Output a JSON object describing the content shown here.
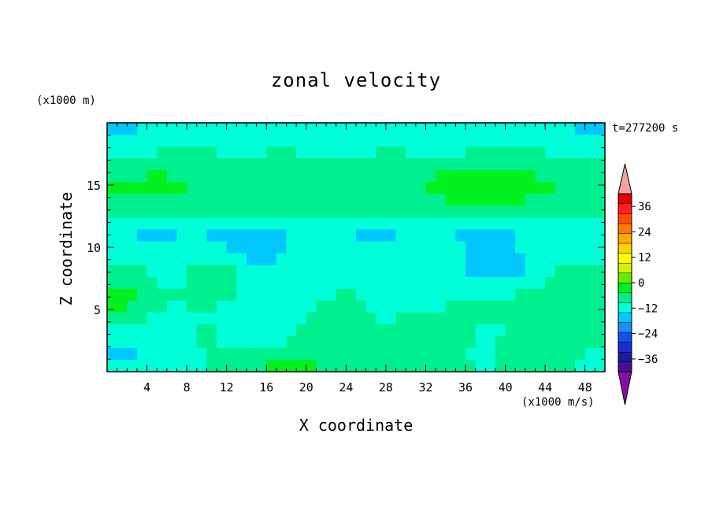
{
  "chart_data": {
    "type": "heatmap",
    "title": "zonal velocity",
    "xlabel": "X coordinate",
    "ylabel": "Z coordinate",
    "x_unit": "(x1000 m/s)",
    "y_unit": "(x1000 m)",
    "time_label": "t=277200 s",
    "xlim": [
      0,
      50
    ],
    "ylim": [
      0,
      20
    ],
    "x_ticks": [
      4,
      8,
      12,
      16,
      20,
      24,
      28,
      32,
      36,
      40,
      44,
      48
    ],
    "y_ticks": [
      5,
      10,
      15
    ],
    "colorbar": {
      "min": -42,
      "max": 42,
      "step": 6,
      "tick_values": [
        36,
        24,
        12,
        0,
        -12,
        -24,
        -36
      ],
      "tick_labels": [
        "36",
        "24",
        "12",
        "0",
        "−12",
        "−24",
        "−36"
      ],
      "colors": [
        "#4b0e8e",
        "#1d1a9e",
        "#1a2ed0",
        "#1450f0",
        "#1a8ef4",
        "#00c8ff",
        "#00ffd8",
        "#00f090",
        "#00f020",
        "#60f000",
        "#d8f000",
        "#ffff00",
        "#ffd200",
        "#ffa800",
        "#ff7800",
        "#ff4c00",
        "#ff2020",
        "#e80000"
      ],
      "over_color": "#f4a0a0",
      "under_color": "#8a0ca8"
    },
    "grid_rows_top_to_bottom": [
      [
        -7,
        -7,
        -7,
        -6,
        -6,
        -5,
        -5,
        -5,
        -4,
        -4,
        -4,
        -4,
        -3,
        -3,
        -4,
        -4,
        -4,
        -5,
        -5,
        -5,
        -5,
        -4,
        -4,
        -3,
        -3,
        -3,
        -4,
        -4,
        -4,
        -5,
        -5,
        -5,
        -5,
        -4,
        -4,
        -4,
        -5,
        -5,
        -6,
        -6,
        -6,
        -6,
        -6,
        -6,
        -6,
        -6,
        -6,
        -7,
        -7,
        -7
      ],
      [
        -5,
        -5,
        -4,
        -4,
        -3,
        -3,
        -2,
        -2,
        -2,
        -3,
        -3,
        -3,
        -2,
        -2,
        -2,
        -3,
        -3,
        -3,
        -3,
        -2,
        -2,
        -2,
        -2,
        -3,
        -3,
        -3,
        -3,
        -2,
        -2,
        -2,
        -3,
        -3,
        -3,
        -3,
        -2,
        -2,
        -2,
        -3,
        -3,
        -3,
        -3,
        -2,
        -2,
        -2,
        -3,
        -3,
        -3,
        -3,
        -3,
        -3
      ],
      [
        -2,
        -2,
        -1,
        -1,
        -1,
        1,
        1,
        2,
        2,
        1,
        1,
        -1,
        -1,
        -2,
        -2,
        -1,
        1,
        1,
        1,
        -1,
        -1,
        -2,
        -2,
        -1,
        -1,
        -1,
        -1,
        1,
        1,
        1,
        -1,
        -1,
        -1,
        -2,
        -2,
        -1,
        1,
        1,
        1,
        2,
        2,
        1,
        1,
        1,
        -1,
        -1,
        -1,
        -1,
        -1,
        -1
      ],
      [
        1,
        1,
        2,
        2,
        3,
        3,
        3,
        2,
        2,
        1,
        1,
        1,
        1,
        1,
        2,
        2,
        2,
        1,
        1,
        1,
        1,
        1,
        2,
        2,
        2,
        1,
        1,
        1,
        1,
        2,
        2,
        2,
        1,
        1,
        1,
        1,
        1,
        2,
        2,
        2,
        2,
        1,
        1,
        1,
        2,
        2,
        1,
        1,
        1,
        1
      ],
      [
        4,
        4,
        5,
        5,
        6,
        6,
        5,
        5,
        4,
        4,
        4,
        3,
        3,
        3,
        4,
        4,
        4,
        3,
        3,
        3,
        3,
        3,
        3,
        4,
        4,
        4,
        3,
        3,
        3,
        3,
        4,
        4,
        5,
        6,
        7,
        8,
        8,
        9,
        9,
        9,
        8,
        7,
        6,
        5,
        5,
        4,
        4,
        4,
        4,
        4
      ],
      [
        6,
        6,
        7,
        7,
        8,
        8,
        7,
        6,
        5,
        5,
        4,
        4,
        4,
        4,
        5,
        5,
        4,
        4,
        3,
        3,
        3,
        3,
        3,
        3,
        4,
        4,
        4,
        4,
        4,
        4,
        5,
        5,
        6,
        7,
        8,
        9,
        10,
        10,
        11,
        11,
        10,
        9,
        8,
        7,
        6,
        5,
        5,
        5,
        5,
        5
      ],
      [
        3,
        3,
        4,
        4,
        5,
        5,
        5,
        4,
        3,
        3,
        3,
        2,
        2,
        2,
        2,
        3,
        3,
        2,
        2,
        2,
        2,
        2,
        2,
        2,
        3,
        3,
        3,
        3,
        3,
        3,
        3,
        4,
        4,
        5,
        6,
        7,
        7,
        7,
        7,
        7,
        7,
        6,
        5,
        4,
        4,
        3,
        3,
        3,
        3,
        3
      ],
      [
        0,
        0,
        0,
        1,
        1,
        1,
        1,
        0,
        0,
        0,
        0,
        0,
        0,
        0,
        0,
        0,
        0,
        0,
        0,
        0,
        0,
        0,
        0,
        0,
        0,
        0,
        0,
        0,
        0,
        0,
        0,
        0,
        0,
        0,
        0,
        1,
        1,
        1,
        1,
        1,
        1,
        1,
        1,
        0,
        0,
        0,
        0,
        0,
        0,
        0
      ],
      [
        -3,
        -3,
        -3,
        -3,
        -4,
        -4,
        -4,
        -4,
        -3,
        -3,
        -3,
        -3,
        -3,
        -4,
        -4,
        -5,
        -5,
        -4,
        -3,
        -3,
        -3,
        -3,
        -3,
        -3,
        -3,
        -3,
        -4,
        -4,
        -4,
        -4,
        -3,
        -3,
        -3,
        -3,
        -3,
        -3,
        -3,
        -3,
        -3,
        -3,
        -3,
        -3,
        -3,
        -3,
        -3,
        -3,
        -3,
        -3,
        -3,
        -3
      ],
      [
        -6,
        -6,
        -6,
        -7,
        -7,
        -7,
        -7,
        -6,
        -6,
        -6,
        -7,
        -7,
        -7,
        -7,
        -8,
        -8,
        -8,
        -7,
        -6,
        -6,
        -6,
        -6,
        -6,
        -6,
        -6,
        -7,
        -7,
        -7,
        -7,
        -6,
        -5,
        -5,
        -5,
        -6,
        -6,
        -7,
        -7,
        -7,
        -7,
        -7,
        -7,
        -6,
        -6,
        -6,
        -6,
        -6,
        -6,
        -6,
        -6,
        -6
      ],
      [
        -5,
        -5,
        -5,
        -6,
        -6,
        -6,
        -5,
        -5,
        -5,
        -5,
        -6,
        -6,
        -7,
        -7,
        -8,
        -8,
        -8,
        -7,
        -6,
        -5,
        -5,
        -5,
        -5,
        -5,
        -5,
        -6,
        -6,
        -5,
        -5,
        -4,
        -4,
        -3,
        -4,
        -4,
        -5,
        -6,
        -7,
        -8,
        -8,
        -8,
        -7,
        -6,
        -5,
        -5,
        -5,
        -5,
        -5,
        -5,
        -5,
        -5
      ],
      [
        -4,
        -4,
        -4,
        -5,
        -5,
        -5,
        -4,
        -4,
        -3,
        -3,
        -4,
        -5,
        -5,
        -6,
        -7,
        -7,
        -7,
        -6,
        -5,
        -4,
        -4,
        -4,
        -4,
        -4,
        -4,
        -5,
        -5,
        -4,
        -3,
        -3,
        -2,
        -2,
        -3,
        -4,
        -5,
        -6,
        -8,
        -9,
        -10,
        -10,
        -9,
        -8,
        -6,
        -5,
        -4,
        -4,
        -4,
        -4,
        -4,
        -4
      ],
      [
        1,
        1,
        1,
        0,
        -1,
        -2,
        -2,
        -1,
        1,
        2,
        2,
        1,
        0,
        -1,
        -3,
        -4,
        -5,
        -5,
        -4,
        -3,
        -3,
        -3,
        -3,
        -3,
        -3,
        -3,
        -2,
        -1,
        -1,
        -2,
        -3,
        -4,
        -5,
        -6,
        -6,
        -6,
        -7,
        -8,
        -9,
        -9,
        -8,
        -7,
        -5,
        -3,
        -1,
        1,
        2,
        2,
        2,
        2
      ],
      [
        4,
        4,
        4,
        3,
        1,
        -1,
        -2,
        -1,
        2,
        3,
        4,
        3,
        1,
        -1,
        -3,
        -5,
        -6,
        -6,
        -5,
        -4,
        -3,
        -3,
        -2,
        -1,
        -1,
        -2,
        -3,
        -4,
        -4,
        -5,
        -5,
        -6,
        -6,
        -6,
        -5,
        -5,
        -5,
        -5,
        -6,
        -6,
        -5,
        -4,
        -3,
        -1,
        1,
        2,
        3,
        3,
        3,
        3
      ],
      [
        7,
        7,
        6,
        5,
        3,
        1,
        0,
        0,
        1,
        2,
        3,
        2,
        0,
        -2,
        -4,
        -5,
        -6,
        -6,
        -5,
        -4,
        -3,
        -2,
        -1,
        0,
        0,
        -1,
        -2,
        -3,
        -3,
        -4,
        -4,
        -5,
        -5,
        -4,
        -3,
        -3,
        -2,
        -2,
        -1,
        -1,
        -1,
        0,
        1,
        2,
        3,
        4,
        5,
        5,
        5,
        5
      ],
      [
        6,
        6,
        5,
        4,
        2,
        0,
        -1,
        -1,
        0,
        0,
        0,
        -1,
        -2,
        -3,
        -4,
        -5,
        -5,
        -5,
        -4,
        -3,
        -2,
        0,
        1,
        2,
        1,
        0,
        -1,
        -2,
        -2,
        -2,
        -3,
        -3,
        -3,
        -2,
        0,
        1,
        1,
        1,
        1,
        1,
        2,
        2,
        3,
        3,
        4,
        4,
        4,
        4,
        4,
        4
      ],
      [
        2,
        2,
        1,
        0,
        -1,
        -2,
        -2,
        -2,
        -1,
        -1,
        -2,
        -3,
        -3,
        -4,
        -4,
        -4,
        -4,
        -3,
        -2,
        -1,
        0,
        1,
        3,
        3,
        2,
        1,
        0,
        -1,
        -1,
        0,
        1,
        2,
        3,
        3,
        3,
        2,
        1,
        0,
        0,
        0,
        0,
        1,
        1,
        1,
        2,
        2,
        2,
        2,
        2,
        2
      ],
      [
        -2,
        -2,
        -2,
        -3,
        -3,
        -3,
        -3,
        -2,
        -1,
        0,
        0,
        -1,
        -2,
        -3,
        -3,
        -3,
        -2,
        -2,
        -1,
        0,
        1,
        2,
        3,
        3,
        2,
        1,
        0,
        0,
        1,
        2,
        3,
        4,
        4,
        3,
        3,
        1,
        0,
        -1,
        -1,
        -1,
        0,
        0,
        1,
        1,
        2,
        2,
        2,
        1,
        1,
        1
      ],
      [
        -5,
        -5,
        -5,
        -5,
        -4,
        -4,
        -3,
        -2,
        -1,
        0,
        0,
        -1,
        -1,
        -1,
        -1,
        -1,
        -1,
        -1,
        0,
        1,
        2,
        2,
        2,
        2,
        1,
        0,
        0,
        0,
        1,
        2,
        3,
        3,
        3,
        2,
        1,
        0,
        0,
        -1,
        -1,
        0,
        1,
        2,
        3,
        4,
        4,
        3,
        2,
        1,
        0,
        0
      ],
      [
        -7,
        -7,
        -7,
        -6,
        -6,
        -5,
        -4,
        -3,
        -2,
        -1,
        0,
        0,
        0,
        1,
        1,
        1,
        1,
        1,
        2,
        2,
        2,
        2,
        1,
        1,
        0,
        0,
        0,
        0,
        0,
        1,
        1,
        1,
        1,
        0,
        0,
        0,
        -1,
        -1,
        -1,
        0,
        1,
        2,
        3,
        3,
        3,
        2,
        1,
        0,
        -1,
        -1
      ],
      [
        -5,
        -5,
        -6,
        -6,
        -6,
        -5,
        -4,
        -3,
        -2,
        -1,
        0,
        1,
        2,
        3,
        4,
        5,
        6,
        6,
        7,
        7,
        6,
        5,
        3,
        2,
        1,
        1,
        2,
        2,
        2,
        1,
        0,
        0,
        0,
        0,
        0,
        0,
        0,
        -1,
        -1,
        0,
        0,
        1,
        1,
        1,
        1,
        0,
        0,
        -1,
        -1,
        -1
      ]
    ]
  }
}
